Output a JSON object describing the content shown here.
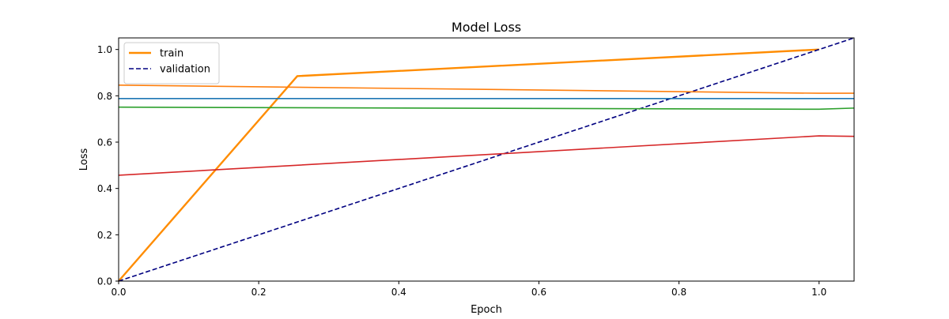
{
  "chart_data": {
    "type": "line",
    "title": "Model Loss",
    "xlabel": "Epoch",
    "ylabel": "Loss",
    "xlim": [
      0,
      1.05
    ],
    "ylim": [
      0,
      1.05
    ],
    "x_ticks": [
      0.0,
      0.2,
      0.4,
      0.6,
      0.8,
      1.0
    ],
    "y_ticks": [
      0.0,
      0.2,
      0.4,
      0.6,
      0.8,
      1.0
    ],
    "grid": false,
    "legend_position": "top-left",
    "legend": [
      {
        "label": "train",
        "color": "#ff8c00",
        "style": "solid"
      },
      {
        "label": "validation",
        "color": "#000080",
        "style": "dashed"
      }
    ],
    "series": [
      {
        "color": "#ff8c00",
        "style": "solid",
        "width": "thick",
        "points": [
          [
            0,
            0
          ],
          [
            0.255,
            0.885
          ],
          [
            1.0,
            1.0
          ]
        ]
      },
      {
        "color": "#000080",
        "style": "dashed",
        "width": "normal",
        "points": [
          [
            0,
            0
          ],
          [
            1.05,
            1.05
          ]
        ]
      },
      {
        "color": "#1f77b4",
        "style": "solid",
        "width": "normal",
        "points": [
          [
            0,
            0.788
          ],
          [
            1.05,
            0.788
          ]
        ]
      },
      {
        "color": "#ff7f0e",
        "style": "solid",
        "width": "normal",
        "points": [
          [
            0,
            0.846
          ],
          [
            1.0,
            0.811
          ],
          [
            1.05,
            0.811
          ]
        ]
      },
      {
        "color": "#2ca02c",
        "style": "solid",
        "width": "normal",
        "points": [
          [
            0,
            0.751
          ],
          [
            1.0,
            0.742
          ],
          [
            1.05,
            0.747
          ]
        ]
      },
      {
        "color": "#d62728",
        "style": "solid",
        "width": "normal",
        "points": [
          [
            0,
            0.457
          ],
          [
            1.0,
            0.627
          ],
          [
            1.05,
            0.625
          ]
        ]
      }
    ]
  }
}
